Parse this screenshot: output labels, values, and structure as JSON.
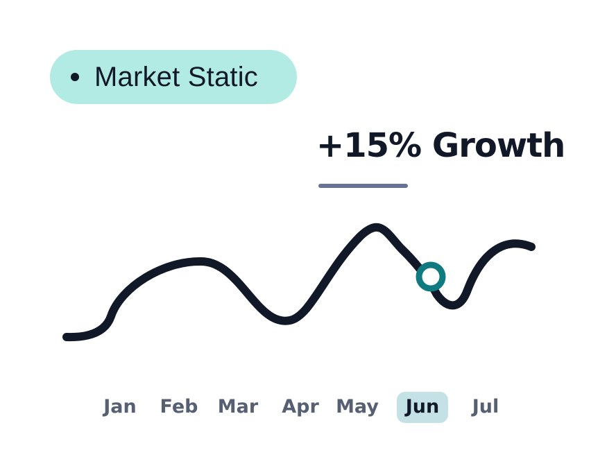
{
  "badge": {
    "label": "Market Static"
  },
  "headline": {
    "text": "+15% Growth"
  },
  "colors": {
    "badge_bg": "#b2ebe3",
    "line": "#111827",
    "marker": "#0f7a7f",
    "selected_month_bg": "#c4e2e6",
    "month_text": "#566072",
    "underline": "#667396"
  },
  "chart_data": {
    "type": "line",
    "x": [
      "Jan",
      "Feb",
      "Mar",
      "Apr",
      "May",
      "Jun",
      "Jul"
    ],
    "selected": "Jun",
    "marker": {
      "x": "Jun"
    },
    "grid": false,
    "legend": "none"
  }
}
